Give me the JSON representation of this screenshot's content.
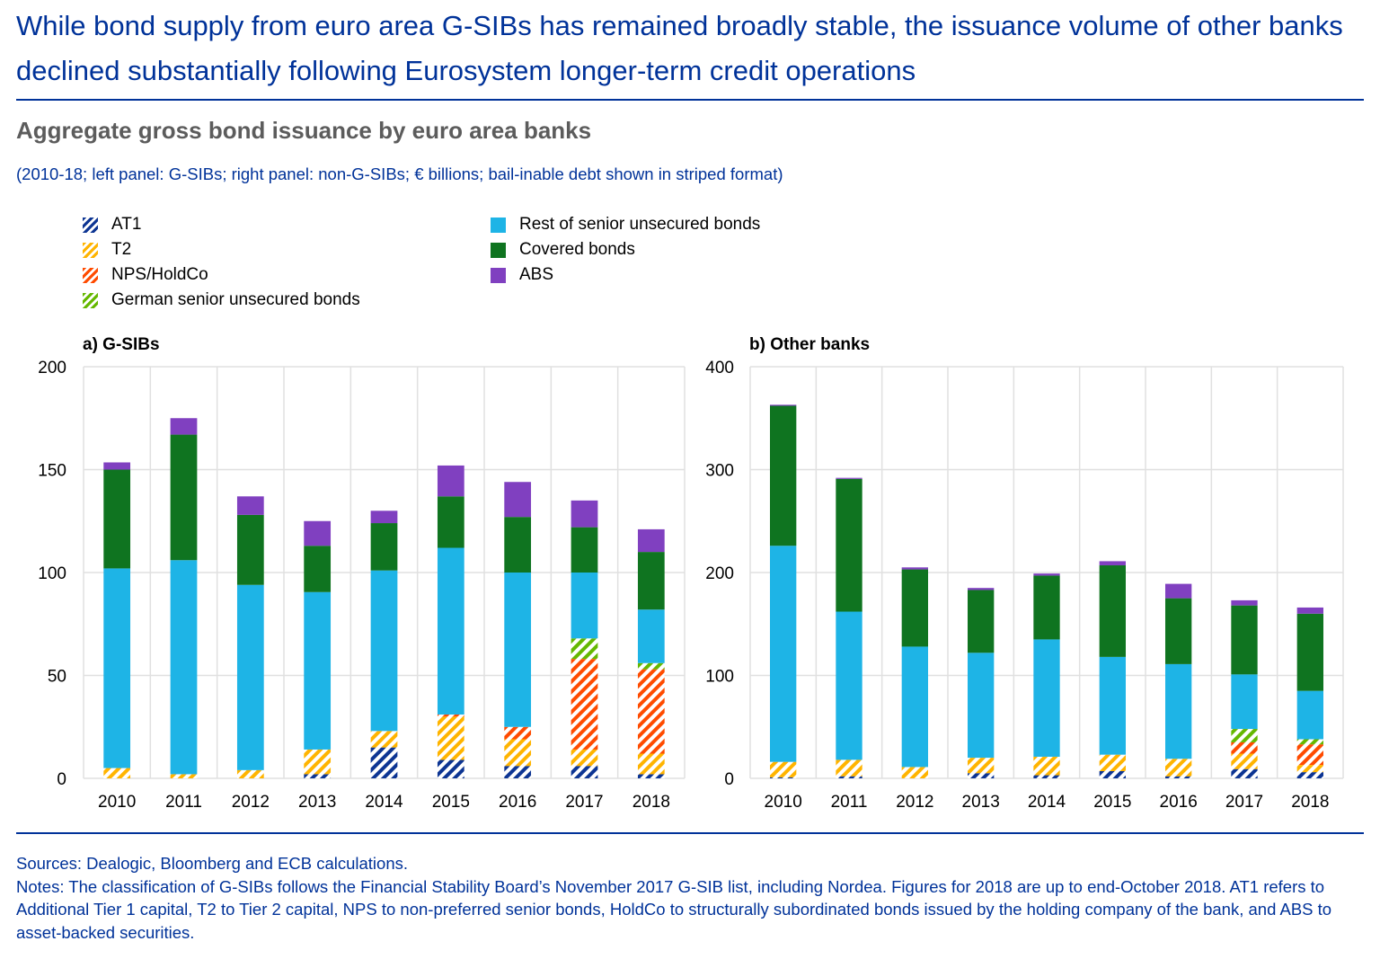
{
  "headline": "While bond supply from euro area G-SIBs has remained broadly stable, the issuance volume of other banks declined substantially following Eurosystem longer-term credit operations",
  "chart_title": "Aggregate gross bond issuance by euro area banks",
  "chart_caption": "(2010-18; left panel: G-SIBs; right panel: non-G-SIBs; € billions; bail-inable debt shown in striped format)",
  "legend": [
    {
      "label": "AT1",
      "color": "#0d3593",
      "striped": true
    },
    {
      "label": "T2",
      "color": "#ffb400",
      "striped": true
    },
    {
      "label": "NPS/HoldCo",
      "color": "#ff4b00",
      "striped": true
    },
    {
      "label": "German senior unsecured bonds",
      "color": "#65b800",
      "striped": true
    },
    {
      "label": "Rest of senior unsecured bonds",
      "color": "#1eb4e6",
      "striped": false
    },
    {
      "label": "Covered bonds",
      "color": "#0f7420",
      "striped": false
    },
    {
      "label": "ABS",
      "color": "#8040c0",
      "striped": false
    }
  ],
  "chart_data": [
    {
      "type": "bar",
      "stacked": true,
      "title": "a) G-SIBs",
      "xlabel": "",
      "ylabel": "€ billions",
      "ylim": [
        0,
        200
      ],
      "yticks": [
        "0",
        "50",
        "100",
        "150",
        "200"
      ],
      "grid": true,
      "categories": [
        "2010",
        "2011",
        "2012",
        "2013",
        "2014",
        "2015",
        "2016",
        "2017",
        "2018"
      ],
      "series": [
        {
          "name": "AT1",
          "values": [
            0,
            0,
            0,
            2,
            15,
            9,
            6,
            6,
            2
          ]
        },
        {
          "name": "T2",
          "values": [
            5,
            2,
            4,
            12,
            8,
            21,
            13,
            8,
            10
          ]
        },
        {
          "name": "NPS/HoldCo",
          "values": [
            0,
            0,
            0,
            0,
            0,
            1,
            6,
            44,
            41
          ]
        },
        {
          "name": "German senior unsecured bonds",
          "values": [
            0,
            0,
            0,
            0,
            0,
            0,
            0,
            10,
            3
          ]
        },
        {
          "name": "Rest of senior unsecured bonds",
          "values": [
            97,
            104,
            90,
            76.5,
            78,
            81,
            75,
            32,
            26
          ]
        },
        {
          "name": "Covered bonds",
          "values": [
            48,
            61,
            34,
            22.5,
            23,
            25,
            27,
            22,
            28
          ]
        },
        {
          "name": "ABS",
          "values": [
            3.5,
            8,
            9,
            12,
            6,
            15,
            17,
            13,
            11
          ]
        }
      ]
    },
    {
      "type": "bar",
      "stacked": true,
      "title": "b) Other banks",
      "xlabel": "",
      "ylabel": "€ billions",
      "ylim": [
        0,
        400
      ],
      "yticks": [
        "0",
        "100",
        "200",
        "300",
        "400"
      ],
      "grid": true,
      "categories": [
        "2010",
        "2011",
        "2012",
        "2013",
        "2014",
        "2015",
        "2016",
        "2017",
        "2018"
      ],
      "series": [
        {
          "name": "AT1",
          "values": [
            1,
            2,
            0,
            5,
            3,
            7,
            2,
            9,
            6
          ]
        },
        {
          "name": "T2",
          "values": [
            15,
            16,
            11,
            15,
            18,
            16,
            17,
            15,
            7
          ]
        },
        {
          "name": "NPS/HoldCo",
          "values": [
            0,
            0,
            0,
            0,
            0,
            0,
            0,
            11,
            20
          ]
        },
        {
          "name": "German senior unsecured bonds",
          "values": [
            0,
            0,
            0,
            0,
            0,
            0,
            0,
            13,
            5
          ]
        },
        {
          "name": "Rest of senior unsecured bonds",
          "values": [
            210,
            144,
            117,
            102,
            114,
            95,
            92,
            53,
            47
          ]
        },
        {
          "name": "Covered bonds",
          "values": [
            136,
            129,
            75,
            61,
            62,
            89,
            64,
            67,
            75
          ]
        },
        {
          "name": "ABS",
          "values": [
            1,
            1,
            2,
            2,
            2,
            4,
            14,
            5,
            6
          ]
        }
      ]
    }
  ],
  "footer": {
    "sources": "Sources: Dealogic, Bloomberg and ECB calculations.",
    "notes": "Notes: The classification of G-SIBs follows the Financial Stability Board’s November 2017 G-SIB list, including Nordea. Figures for 2018 are up to end-October 2018. AT1 refers to Additional Tier 1 capital, T2 to Tier 2 capital, NPS to non-preferred senior bonds, HoldCo to structurally subordinated bonds issued by the holding company of the bank, and ABS to asset-backed securities."
  }
}
